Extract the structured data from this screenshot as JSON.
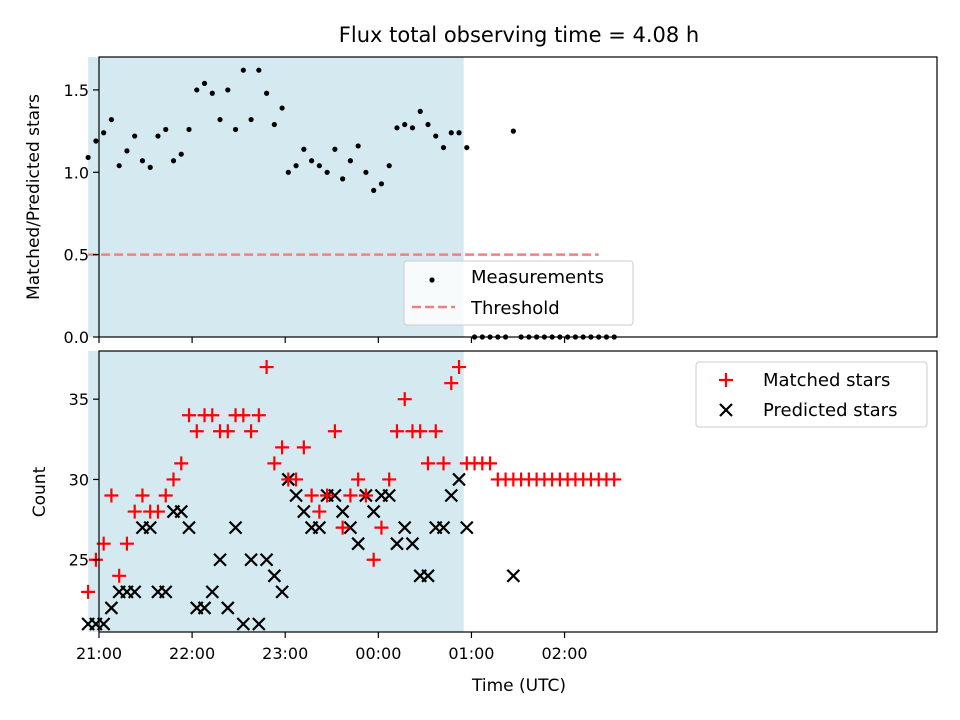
{
  "chart_data": [
    {
      "type": "scatter",
      "title": "Flux total observing time = 4.08 h",
      "xlabel": "",
      "ylabel": "Matched/Predicted stars",
      "ylim": [
        0,
        1.7
      ],
      "yticks": [
        "0.0",
        "0.5",
        "1.0",
        "1.5"
      ],
      "legend_position": "bottom-center",
      "shaded_interval": [
        "20:53",
        "00:55"
      ],
      "colors": {
        "shade": "#d4eaf0",
        "measurements": "#000000",
        "threshold": "#f08080"
      },
      "series": [
        {
          "name": "Measurements",
          "marker": "dot",
          "x": [
            "20:53",
            "20:58",
            "21:03",
            "21:08",
            "21:13",
            "21:18",
            "21:23",
            "21:28",
            "21:33",
            "21:38",
            "21:43",
            "21:48",
            "21:53",
            "21:58",
            "22:03",
            "22:08",
            "22:13",
            "22:18",
            "22:23",
            "22:28",
            "22:33",
            "22:38",
            "22:43",
            "22:48",
            "22:53",
            "22:58",
            "23:02",
            "23:07",
            "23:12",
            "23:17",
            "23:22",
            "23:27",
            "23:32",
            "23:37",
            "23:42",
            "23:47",
            "23:52",
            "23:57",
            "00:02",
            "00:07",
            "00:12",
            "00:17",
            "00:22",
            "00:27",
            "00:32",
            "00:37",
            "00:42",
            "00:47",
            "00:52",
            "00:57",
            "01:02",
            "01:07",
            "01:12",
            "01:17",
            "01:22",
            "01:27",
            "01:32",
            "01:37",
            "01:42",
            "01:47",
            "01:52",
            "01:57",
            "02:02",
            "02:07",
            "02:12",
            "02:17",
            "02:22",
            "02:27",
            "02:32"
          ],
          "y": [
            1.09,
            1.19,
            1.24,
            1.32,
            1.04,
            1.13,
            1.22,
            1.07,
            1.03,
            1.22,
            1.26,
            1.07,
            1.11,
            1.26,
            1.5,
            1.54,
            1.48,
            1.32,
            1.5,
            1.26,
            1.62,
            1.32,
            1.62,
            1.48,
            1.29,
            1.39,
            1.0,
            1.04,
            1.14,
            1.07,
            1.04,
            1.0,
            1.14,
            0.96,
            1.07,
            1.16,
            1.0,
            0.89,
            0.93,
            1.04,
            1.27,
            1.29,
            1.27,
            1.37,
            1.29,
            1.22,
            1.15,
            1.24,
            1.24,
            1.15,
            0.0,
            0.0,
            0.0,
            0.0,
            0.0,
            1.25,
            0.0,
            0.0,
            0.0,
            0.0,
            0.0,
            0.0,
            0.0,
            0.0,
            0.0,
            0.0,
            0.0,
            0.0,
            0.0
          ]
        },
        {
          "name": "Threshold",
          "line": "dashed",
          "x": [
            "20:53",
            "02:22"
          ],
          "y": [
            0.5,
            0.5
          ]
        }
      ]
    },
    {
      "type": "scatter",
      "xlabel": "Time (UTC)",
      "ylabel": "Count",
      "ylim": [
        20.5,
        38
      ],
      "yticks": [
        "25",
        "30",
        "35"
      ],
      "xticks": [
        "21:00",
        "22:00",
        "23:00",
        "00:00",
        "01:00",
        "02:00"
      ],
      "legend_position": "top-right",
      "colors": {
        "matched": "#ff0000",
        "predicted": "#000000"
      },
      "series": [
        {
          "name": "Matched stars",
          "marker": "plus",
          "x": [
            "20:53",
            "20:58",
            "21:03",
            "21:08",
            "21:13",
            "21:18",
            "21:23",
            "21:28",
            "21:33",
            "21:38",
            "21:43",
            "21:48",
            "21:53",
            "21:58",
            "22:03",
            "22:08",
            "22:13",
            "22:18",
            "22:23",
            "22:28",
            "22:33",
            "22:38",
            "22:43",
            "22:48",
            "22:53",
            "22:58",
            "23:02",
            "23:07",
            "23:12",
            "23:17",
            "23:22",
            "23:27",
            "23:32",
            "23:37",
            "23:42",
            "23:47",
            "23:52",
            "23:57",
            "00:02",
            "00:07",
            "00:12",
            "00:17",
            "00:22",
            "00:27",
            "00:32",
            "00:37",
            "00:42",
            "00:47",
            "00:52",
            "00:57",
            "01:02",
            "01:07",
            "01:12",
            "01:17",
            "01:22",
            "01:27",
            "01:32",
            "01:37",
            "01:42",
            "01:47",
            "01:52",
            "01:57",
            "02:02",
            "02:07",
            "02:12",
            "02:17",
            "02:22",
            "02:27",
            "02:32"
          ],
          "y": [
            23,
            25,
            26,
            29,
            24,
            26,
            28,
            29,
            28,
            28,
            29,
            30,
            31,
            34,
            33,
            34,
            34,
            33,
            33,
            34,
            34,
            33,
            34,
            37,
            31,
            32,
            30,
            30,
            32,
            29,
            28,
            29,
            33,
            27,
            29,
            30,
            29,
            25,
            27,
            30,
            33,
            35,
            33,
            33,
            31,
            33,
            31,
            36,
            37,
            31,
            31,
            31,
            31,
            30,
            30,
            30,
            30,
            30,
            30,
            30,
            30,
            30,
            30,
            30,
            30,
            30,
            30,
            30,
            30
          ]
        },
        {
          "name": "Predicted stars",
          "marker": "x",
          "x": [
            "20:53",
            "20:58",
            "21:03",
            "21:08",
            "21:13",
            "21:18",
            "21:23",
            "21:28",
            "21:33",
            "21:38",
            "21:43",
            "21:48",
            "21:53",
            "21:58",
            "22:03",
            "22:08",
            "22:13",
            "22:18",
            "22:23",
            "22:28",
            "22:33",
            "22:38",
            "22:43",
            "22:48",
            "22:53",
            "22:58",
            "23:02",
            "23:07",
            "23:12",
            "23:17",
            "23:22",
            "23:27",
            "23:32",
            "23:37",
            "23:42",
            "23:47",
            "23:52",
            "23:57",
            "00:02",
            "00:07",
            "00:12",
            "00:17",
            "00:22",
            "00:27",
            "00:32",
            "00:37",
            "00:42",
            "00:47",
            "00:52",
            "00:57",
            "01:02",
            "01:07",
            "01:12",
            "01:17",
            "01:22",
            "01:27",
            "01:32",
            "01:37",
            "01:42",
            "01:47",
            "01:52",
            "01:57",
            "02:02",
            "02:07",
            "02:12",
            "02:17",
            "02:22",
            "02:27",
            "02:32"
          ],
          "y": [
            21,
            21,
            21,
            22,
            23,
            23,
            23,
            27,
            27,
            23,
            23,
            28,
            28,
            27,
            22,
            22,
            23,
            25,
            22,
            27,
            21,
            25,
            21,
            25,
            24,
            23,
            30,
            29,
            28,
            27,
            27,
            29,
            29,
            28,
            27,
            26,
            29,
            28,
            29,
            29,
            26,
            27,
            26,
            24,
            24,
            27,
            27,
            29,
            30,
            27,
            null,
            null,
            null,
            null,
            null,
            24,
            null,
            null,
            null,
            null,
            null,
            null,
            null,
            null,
            null,
            null,
            null,
            null,
            null
          ]
        }
      ]
    }
  ]
}
